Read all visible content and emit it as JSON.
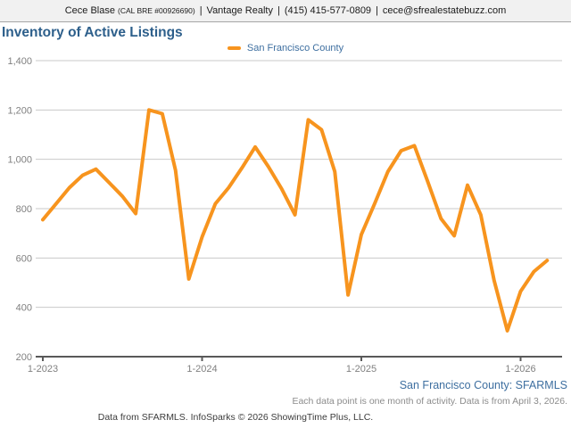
{
  "header": {
    "name": "Cece Blase",
    "license": "(CAL BRE #00926690)",
    "divider": "|",
    "company": "Vantage Realty",
    "phone": "(415) 415-577-0809",
    "email": "cece@sfrealestatebuzz.com"
  },
  "title": "Inventory of Active Listings",
  "chart_data": {
    "type": "line",
    "title": "Inventory of Active Listings",
    "xlabel": "",
    "ylabel": "",
    "grid": true,
    "legend_position": "top-center",
    "ylim": [
      200,
      1400
    ],
    "y_ticks": [
      200,
      400,
      600,
      800,
      1000,
      1200,
      1400
    ],
    "y_tick_labels": [
      "200",
      "400",
      "600",
      "800",
      "1,000",
      "1,200",
      "1,400"
    ],
    "x": [
      "1-2023",
      "2-2023",
      "3-2023",
      "4-2023",
      "5-2023",
      "6-2023",
      "7-2023",
      "8-2023",
      "9-2023",
      "10-2023",
      "11-2023",
      "12-2023",
      "1-2024",
      "2-2024",
      "3-2024",
      "4-2024",
      "5-2024",
      "6-2024",
      "7-2024",
      "8-2024",
      "9-2024",
      "10-2024",
      "11-2024",
      "12-2024",
      "1-2025",
      "2-2025",
      "3-2025",
      "4-2025",
      "5-2025",
      "6-2025",
      "7-2025",
      "8-2025",
      "9-2025",
      "10-2025",
      "11-2025",
      "12-2025",
      "1-2026",
      "2-2026",
      "3-2026"
    ],
    "x_tick_labels": [
      "1-2023",
      "1-2024",
      "1-2025",
      "1-2026"
    ],
    "x_tick_indices": [
      0,
      12,
      24,
      36
    ],
    "series": [
      {
        "name": "San Francisco County",
        "color": "#F7941E",
        "values": [
          755,
          820,
          885,
          935,
          960,
          905,
          850,
          780,
          1200,
          1185,
          955,
          515,
          685,
          820,
          885,
          965,
          1050,
          970,
          880,
          775,
          1160,
          1120,
          950,
          450,
          695,
          820,
          950,
          1035,
          1055,
          910,
          760,
          690,
          895,
          775,
          510,
          305,
          465,
          545,
          590
        ]
      }
    ]
  },
  "footer": {
    "source": "San Francisco County: SFARMLS",
    "note": "Each data point is one month of activity. Data is from April 3, 2026.",
    "attribution": "Data from SFARMLS. InfoSparks © 2026 ShowingTime Plus, LLC."
  },
  "colors": {
    "accent_orange": "#F7941E",
    "title_blue": "#2D5F8B",
    "link_blue": "#3E6FA0",
    "axis_text": "#808080",
    "gridline": "#CACACA",
    "axis_line": "#595959",
    "note_gray": "#8C8C8C",
    "attribution_gray": "#3C3C3C",
    "header_bg": "#F1F1F1",
    "header_border": "#A6A6A6",
    "header_text": "#1A1A1A"
  }
}
